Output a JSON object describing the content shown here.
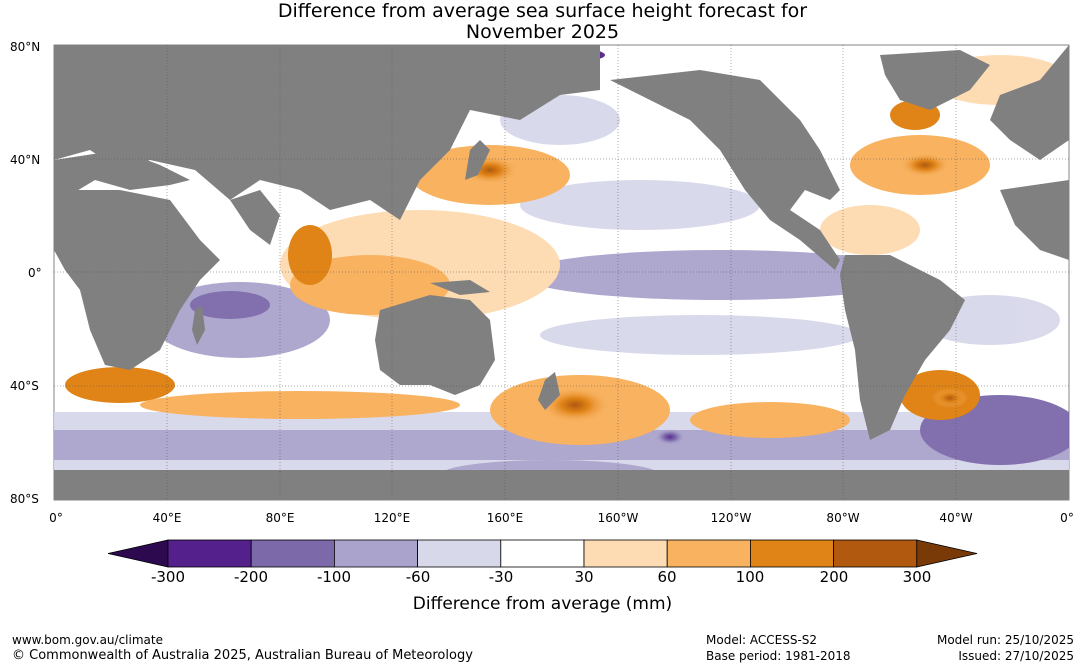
{
  "title": {
    "line1": "Difference from average sea surface height forecast for",
    "line2": "November 2025"
  },
  "map": {
    "latitude_labels": [
      "80°N",
      "40°N",
      "0°",
      "40°S",
      "80°S"
    ],
    "longitude_labels": [
      "0°",
      "40°E",
      "80°E",
      "120°E",
      "160°E",
      "160°W",
      "120°W",
      "80°W",
      "40°W",
      "0°"
    ],
    "ocean_background": "#ffffff",
    "land_color": "#808080"
  },
  "colorbar": {
    "tick_labels": [
      "-300",
      "-200",
      "-100",
      "-60",
      "-30",
      "30",
      "60",
      "100",
      "200",
      "300"
    ],
    "colors": [
      "#2d0a4f",
      "#54218c",
      "#7b69a9",
      "#aaa3cc",
      "#d8d8eb",
      "#ffffff",
      "#fddcb3",
      "#f8b260",
      "#e08418",
      "#b0590f",
      "#7a3a08"
    ],
    "label": "Difference from average (mm)"
  },
  "footer": {
    "website": "www.bom.gov.au/climate",
    "copyright": "© Commonwealth of Australia 2025, Australian Bureau of Meteorology",
    "model": "Model: ACCESS-S2",
    "base_period": "Base period: 1981-2018",
    "model_run": "Model run: 25/10/2025",
    "issued": "Issued: 27/10/2025"
  }
}
